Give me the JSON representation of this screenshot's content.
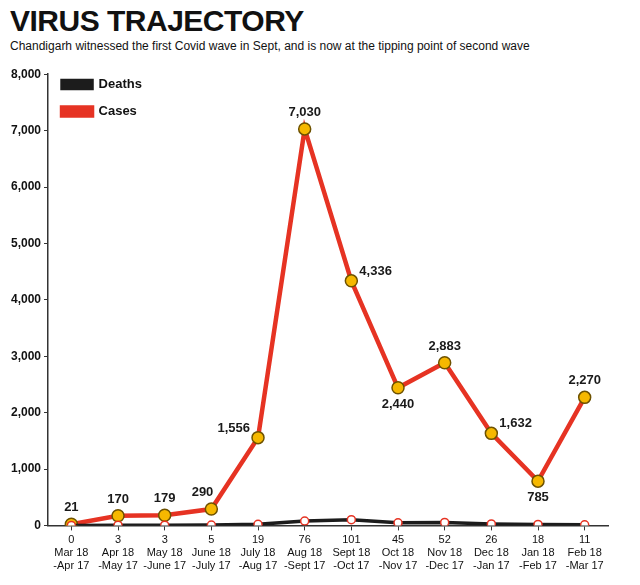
{
  "chart_data": {
    "type": "line",
    "title": "VIRUS TRAJECTORY",
    "subtitle": "Chandigarh witnessed the first Covid wave in Sept, and is now at the tipping point of second wave",
    "categories": [
      "Mar 18 -Apr 17",
      "Apr 18 -May 17",
      "May 18 -June 17",
      "June 18 -July 17",
      "July 18 -Aug 17",
      "Aug 18 -Sept 17",
      "Sept 18 -Oct 17",
      "Oct 18 -Nov 17",
      "Nov 18 -Dec 17",
      "Dec 18 -Jan 17",
      "Jan 18 -Feb 17",
      "Feb 18 -Mar 17"
    ],
    "series": [
      {
        "name": "Cases",
        "color": "#e63323",
        "marker": "circle",
        "line_style": "solid",
        "values": [
          21,
          170,
          179,
          290,
          1556,
          7030,
          4336,
          2440,
          2883,
          1632,
          785,
          2270
        ],
        "value_labels": [
          "21",
          "170",
          "179",
          "290",
          "1,556",
          "7,030",
          "4,336",
          "2,440",
          "2,883",
          "1,632",
          "785",
          "2,270"
        ]
      },
      {
        "name": "Deaths",
        "color": "#1c1c1c",
        "marker": "circle",
        "line_style": "solid",
        "values": [
          0,
          3,
          3,
          5,
          19,
          76,
          101,
          45,
          52,
          26,
          18,
          11
        ]
      }
    ],
    "ylim": [
      0,
      8000
    ],
    "yticks": [
      0,
      {
        "value": 1000,
        "label": "1,000"
      },
      {
        "value": 2000,
        "label": "2,000"
      },
      {
        "value": 3000,
        "label": "3,000"
      },
      {
        "value": 4000,
        "label": "4,000"
      },
      {
        "value": 5000,
        "label": "5,000"
      },
      {
        "value": 6000,
        "label": "6,000"
      },
      {
        "value": 7000,
        "label": "7,000"
      },
      {
        "value": 8000,
        "label": "8,000"
      }
    ],
    "grid": false,
    "legend": "upper left",
    "data_labels": true
  }
}
